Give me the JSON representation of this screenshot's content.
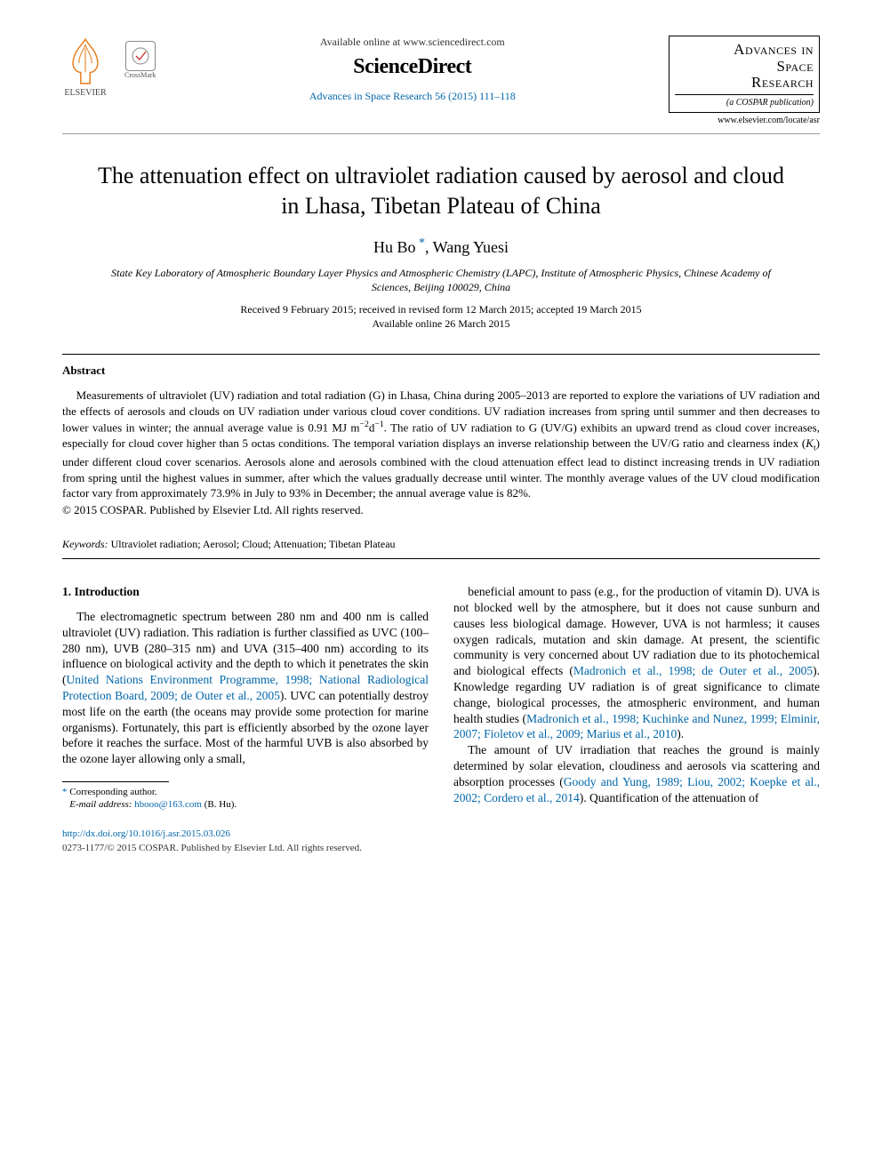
{
  "header": {
    "elsevier_label": "ELSEVIER",
    "crossmark_label": "CrossMark",
    "available_line": "Available online at www.sciencedirect.com",
    "sd_brand": "ScienceDirect",
    "journal_ref_prefix": "Advances in Space Research 56 (2015) 111–118",
    "journal_name_l1": "Advances in",
    "journal_name_l2": "Space",
    "journal_name_l3": "Research",
    "journal_sub": "(a COSPAR publication)",
    "locate_url": "www.elsevier.com/locate/asr"
  },
  "title": "The attenuation effect on ultraviolet radiation caused by aerosol and cloud in Lhasa, Tibetan Plateau of China",
  "authors": {
    "a1": "Hu Bo",
    "a2": "Wang Yuesi"
  },
  "affiliation": "State Key Laboratory of Atmospheric Boundary Layer Physics and Atmospheric Chemistry (LAPC), Institute of Atmospheric Physics, Chinese Academy of Sciences, Beijing 100029, China",
  "dates": {
    "line1": "Received 9 February 2015; received in revised form 12 March 2015; accepted 19 March 2015",
    "line2": "Available online 26 March 2015"
  },
  "abstract": {
    "heading": "Abstract",
    "body_html": "Measurements of ultraviolet (UV) radiation and total radiation (G) in Lhasa, China during 2005–2013 are reported to explore the variations of UV radiation and the effects of aerosols and clouds on UV radiation under various cloud cover conditions. UV radiation increases from spring until summer and then decreases to lower values in winter; the annual average value is 0.91 MJ m<sup>−2</sup>d<sup>−1</sup>. The ratio of UV radiation to G (UV/G) exhibits an upward trend as cloud cover increases, especially for cloud cover higher than 5 octas conditions. The temporal variation displays an inverse relationship between the UV/G ratio and clearness index (<i>K</i><sub>t</sub>) under different cloud cover scenarios. Aerosols alone and aerosols combined with the cloud attenuation effect lead to distinct increasing trends in UV radiation from spring until the highest values in summer, after which the values gradually decrease until winter. The monthly average values of the UV cloud modification factor vary from approximately 73.9% in July to 93% in December; the annual average value is 82%.",
    "copyright": "© 2015 COSPAR. Published by Elsevier Ltd. All rights reserved."
  },
  "keywords": {
    "label": "Keywords:",
    "list": "Ultraviolet radiation; Aerosol; Cloud; Attenuation; Tibetan Plateau"
  },
  "section1": {
    "heading": "1. Introduction",
    "col_left_html": "The electromagnetic spectrum between 280 nm and 400 nm is called ultraviolet (UV) radiation. This radiation is further classified as UVC (100–280 nm), UVB (280–315 nm) and UVA (315–400 nm) according to its influence on biological activity and the depth to which it penetrates the skin (<span class='link'>United Nations Environment Programme, 1998; National Radiological Protection Board, 2009; de Outer et al., 2005</span>). UVC can potentially destroy most life on the earth (the oceans may provide some protection for marine organisms). Fortunately, this part is efficiently absorbed by the ozone layer before it reaches the surface. Most of the harmful UVB is also absorbed by the ozone layer allowing only a small,",
    "col_right_p1_html": "beneficial amount to pass (e.g., for the production of vitamin D). UVA is not blocked well by the atmosphere, but it does not cause sunburn and causes less biological damage. However, UVA is not harmless; it causes oxygen radicals, mutation and skin damage. At present, the scientific community is very concerned about UV radiation due to its photochemical and biological effects (<span class='link'>Madronich et al., 1998; de Outer et al., 2005</span>). Knowledge regarding UV radiation is of great significance to climate change, biological processes, the atmospheric environment, and human health studies (<span class='link'>Madronich et al., 1998; Kuchinke and Nunez, 1999; Elminir, 2007; Fioletov et al., 2009; Marius et al., 2010</span>).",
    "col_right_p2_html": "The amount of UV irradiation that reaches the ground is mainly determined by solar elevation, cloudiness and aerosols via scattering and absorption processes (<span class='link'>Goody and Yung, 1989; Liou, 2002; Koepke et al., 2002; Cordero et al., 2014</span>). Quantification of the attenuation of"
  },
  "footnote": {
    "corr": "Corresponding author.",
    "email_label": "E-mail address:",
    "email": "hbooo@163.com",
    "email_name": "(B. Hu)."
  },
  "footer": {
    "doi": "http://dx.doi.org/10.1016/j.asr.2015.03.026",
    "issn": "0273-1177/© 2015 COSPAR. Published by Elsevier Ltd. All rights reserved."
  },
  "colors": {
    "link": "#0066aa",
    "text": "#000000",
    "rule": "#000000"
  }
}
